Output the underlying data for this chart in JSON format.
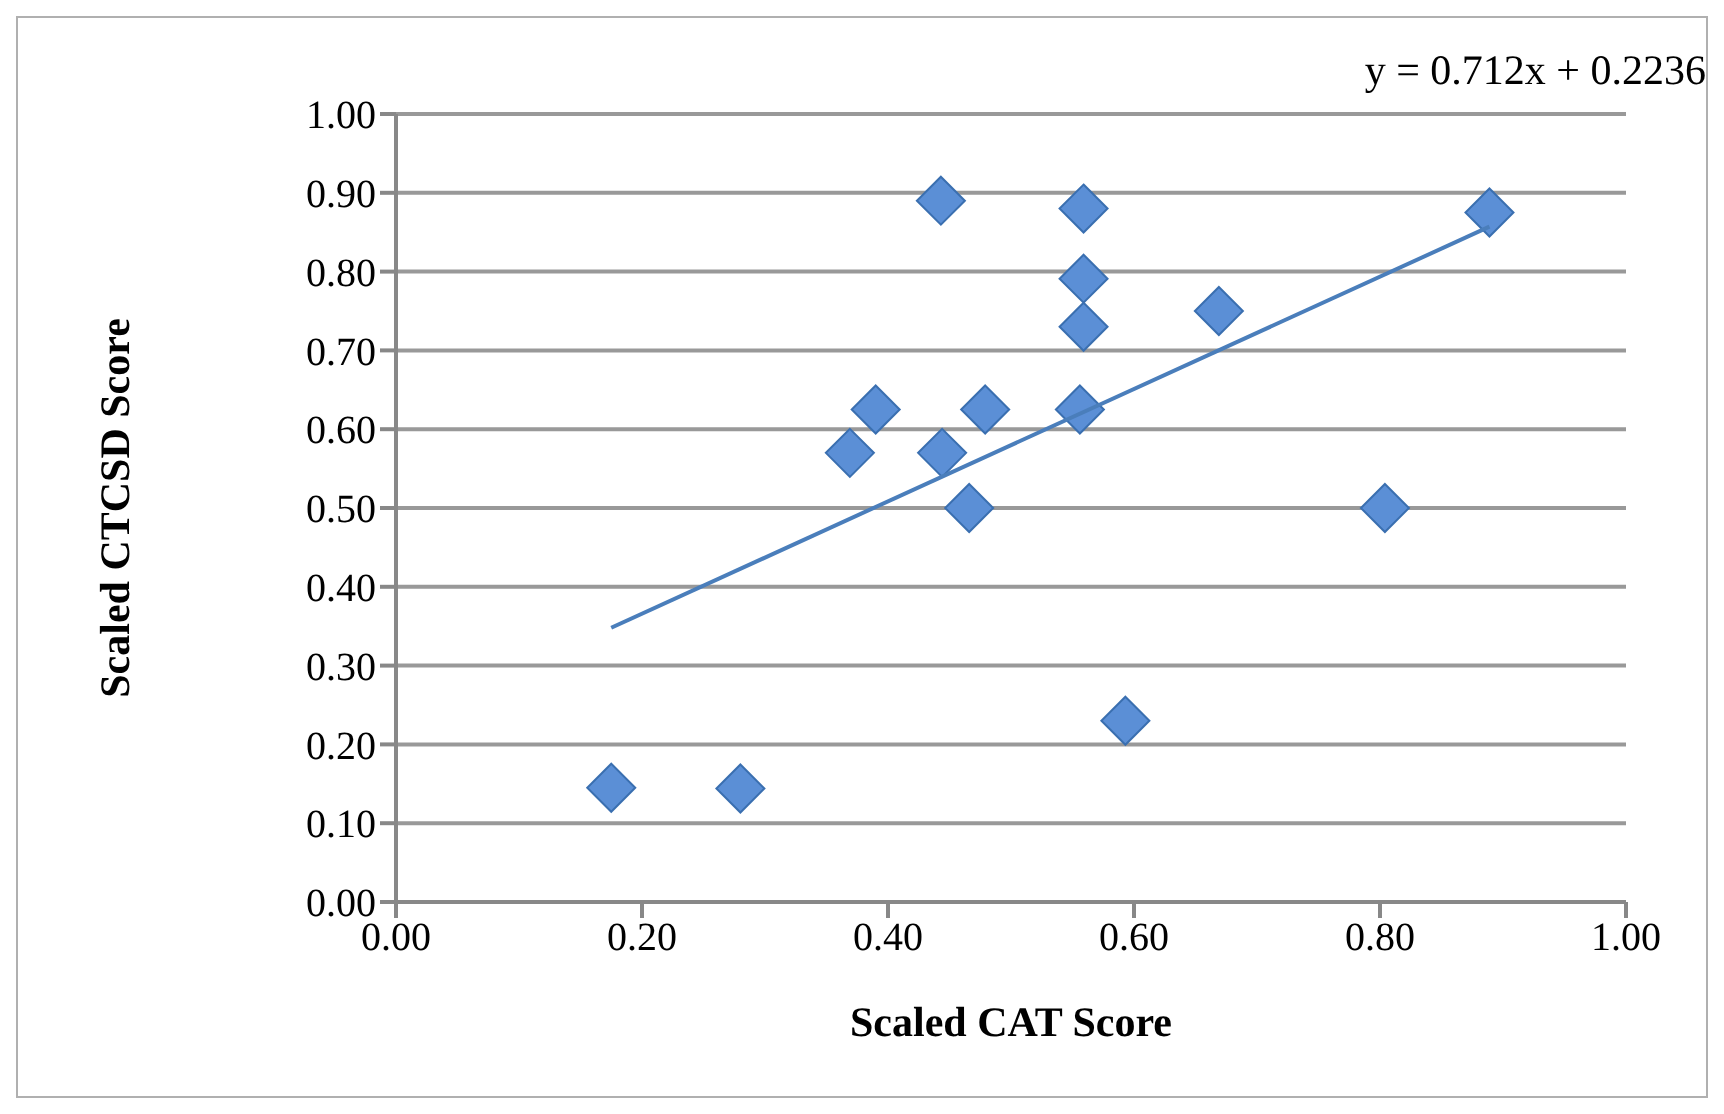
{
  "chart_data": {
    "type": "scatter",
    "xlabel": "Scaled CAT Score",
    "ylabel": "Scaled CTCSD Score",
    "annotations": [
      "y = 0.712x + 0.2236"
    ],
    "series": [
      {
        "color": "#5b8fd6",
        "marker": "diamond",
        "x": [
          0.175,
          0.28,
          0.369,
          0.39,
          0.443,
          0.444,
          0.466,
          0.479,
          0.559,
          0.559,
          0.559,
          0.556,
          0.593,
          0.669,
          0.804,
          0.889
        ],
        "values": [
          0.145,
          0.144,
          0.57,
          0.625,
          0.89,
          0.57,
          0.5,
          0.625,
          0.88,
          0.791,
          0.73,
          0.625,
          0.23,
          0.75,
          0.5,
          0.875
        ]
      },
      {
        "type": "line",
        "color": "#4a7ebb",
        "marker": "none",
        "x": [
          0.175,
          0.889
        ],
        "values": [
          0.348,
          0.857
        ]
      }
    ],
    "xlim": [
      0,
      1
    ],
    "ylim": [
      0,
      1
    ],
    "xticks": [
      {
        "value": 0,
        "label": "0.00"
      },
      {
        "value": 0.2,
        "label": "0.20"
      },
      {
        "value": 0.4,
        "label": "0.40"
      },
      {
        "value": 0.6,
        "label": "0.60"
      },
      {
        "value": 0.8,
        "label": "0.80"
      },
      {
        "value": 1,
        "label": "1.00"
      }
    ],
    "yticks": [
      {
        "value": 0,
        "label": "0.00"
      },
      {
        "value": 0.1,
        "label": "0.10"
      },
      {
        "value": 0.2,
        "label": "0.20"
      },
      {
        "value": 0.3,
        "label": "0.30"
      },
      {
        "value": 0.4,
        "label": "0.40"
      },
      {
        "value": 0.5,
        "label": "0.50"
      },
      {
        "value": 0.6,
        "label": "0.60"
      },
      {
        "value": 0.7,
        "label": "0.70"
      },
      {
        "value": 0.8,
        "label": "0.80"
      },
      {
        "value": 0.9,
        "label": "0.90"
      },
      {
        "value": 1,
        "label": "1.00"
      }
    ],
    "grid": "y"
  }
}
